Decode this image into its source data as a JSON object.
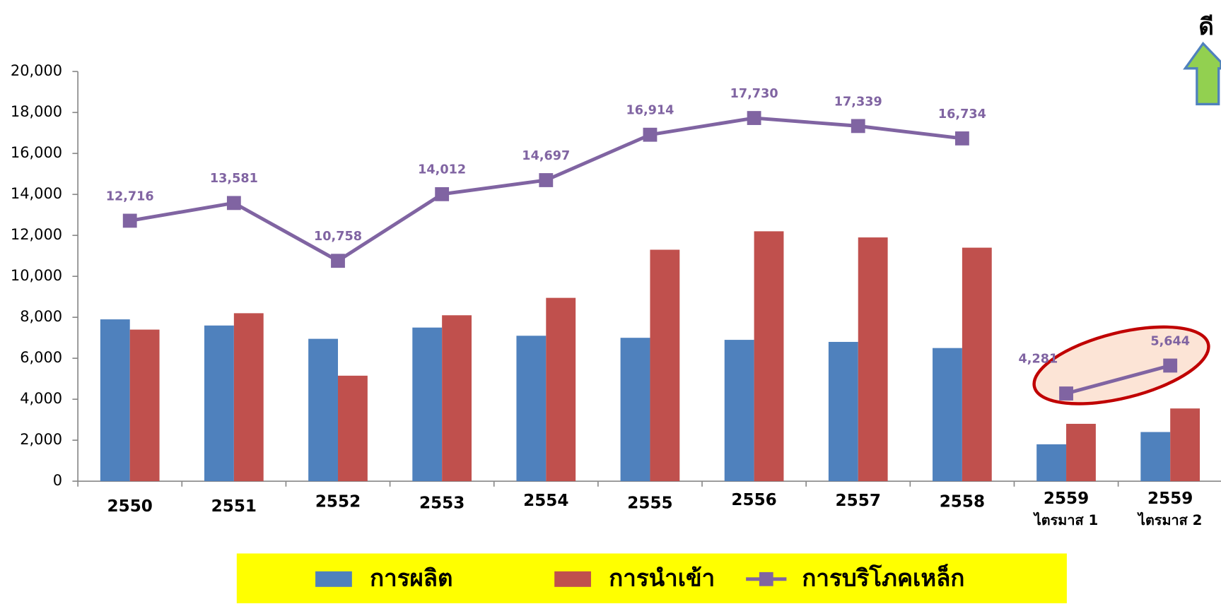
{
  "chart_data": {
    "type": "bar-line",
    "categories": [
      "2550",
      "2551",
      "2552",
      "2553",
      "2554",
      "2555",
      "2556",
      "2557",
      "2558",
      [
        "2559",
        "ไตรมาส 1"
      ],
      [
        "2559",
        "ไตรมาส 2"
      ]
    ],
    "series": [
      {
        "name": "การผลิต",
        "color": "#4f81bd",
        "type": "bar",
        "values": [
          7900,
          7600,
          6950,
          7500,
          7100,
          7000,
          6900,
          6800,
          6500,
          1800,
          2400
        ]
      },
      {
        "name": "การนำเข้า",
        "color": "#c0504d",
        "type": "bar",
        "values": [
          7400,
          8200,
          5150,
          8100,
          8950,
          11300,
          12200,
          11900,
          11400,
          2800,
          3550
        ]
      },
      {
        "name": "การบริโภคเหล็ก",
        "color": "#8064a2",
        "type": "line",
        "break_before": 9,
        "values": [
          12716,
          13581,
          10758,
          14012,
          14697,
          16914,
          17730,
          17339,
          16734,
          4281,
          5644
        ],
        "value_labels": [
          "12,716",
          "13,581",
          "10,758",
          "14,012",
          "14,697",
          "16,914",
          "17,730",
          "17,339",
          "16,734",
          "4,281",
          "5,644"
        ]
      }
    ],
    "ylim": [
      0,
      20000
    ],
    "yticks": [
      0,
      {
        "value": 2000,
        "label": "2,000"
      },
      {
        "value": 4000,
        "label": "4,000"
      },
      {
        "value": 6000,
        "label": "6,000"
      },
      {
        "value": 8000,
        "label": "8,000"
      },
      {
        "value": 10000,
        "label": "10,000"
      },
      {
        "value": 12000,
        "label": "12,000"
      },
      {
        "value": 14000,
        "label": "14,000"
      },
      {
        "value": 16000,
        "label": "16,000"
      },
      {
        "value": 18000,
        "label": "18,000"
      },
      {
        "value": 20000,
        "label": "20,000"
      }
    ],
    "annotation": "ดี",
    "legend_position": "bottom"
  }
}
